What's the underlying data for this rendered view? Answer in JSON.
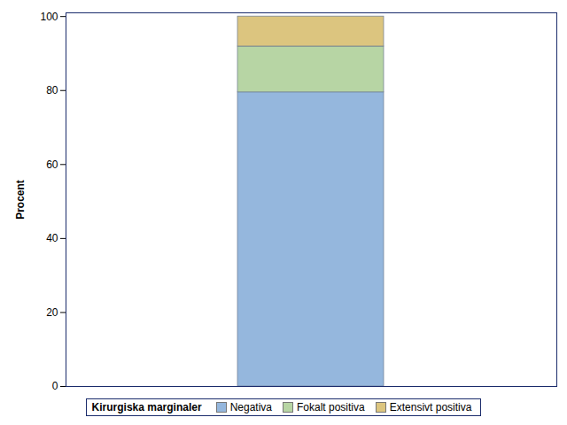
{
  "chart_data": {
    "type": "bar",
    "stacked": true,
    "categories": [
      null
    ],
    "ylabel": "Procent",
    "legend_title": "Kirurgiska marginaler",
    "legend": "bottom",
    "ylim": [
      0,
      101
    ],
    "yticks": [
      0,
      20,
      40,
      60,
      80,
      100
    ],
    "series": [
      {
        "name": "Negativa",
        "color": "#95b7dd",
        "values": [
          79.5
        ]
      },
      {
        "name": "Fokalt positiva",
        "color": "#b7d5a4",
        "values": [
          12.4
        ]
      },
      {
        "name": "Extensivt positiva",
        "color": "#dcc57f",
        "values": [
          8.1
        ]
      }
    ]
  }
}
